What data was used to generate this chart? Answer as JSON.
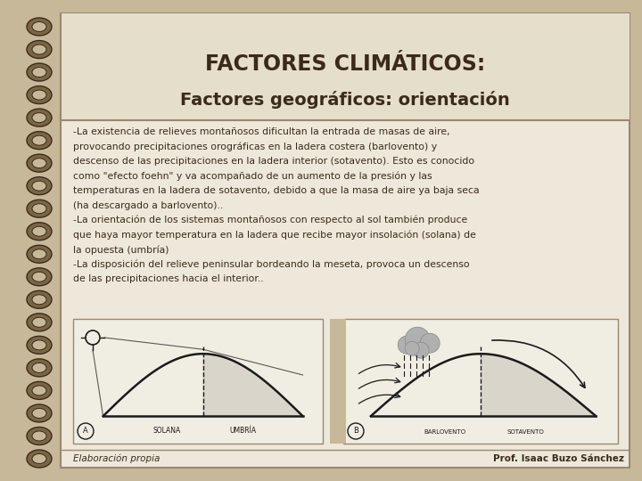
{
  "bg_color": "#c8b89a",
  "notebook_bg": "#ede8da",
  "title1": "FACTORES CLIMÁTICOS:",
  "title2": "Factores geográficos: orientación",
  "title1_fontsize": 17,
  "title2_fontsize": 14,
  "title_color": "#3b2a1a",
  "body_lines": [
    "-La existencia de relieves montañosos dificultan la entrada de masas de aire,",
    "provocando precipitaciones orográficas en la ladera costera (barlovento) y",
    "descenso de las precipitaciones en la ladera interior (sotavento). Esto es conocido",
    "como \"efecto foehn\" y va acompañado de un aumento de la presión y las",
    "temperaturas en la ladera de sotavento, debido a que la masa de aire ya baja seca",
    "(ha descargado a barlovento)..",
    "-La orientación de los sistemas montañosos con respecto al sol también produce",
    "que haya mayor temperatura en la ladera que recibe mayor insolación (solana) de",
    "la opuesta (umbría)",
    "-La disposición del relieve peninsular bordeando la meseta, provoca un descenso",
    "de las precipitaciones hacia el interior.."
  ],
  "body_fontsize": 7.8,
  "body_color": "#3b2a1a",
  "footer_left": "Elaboración propia",
  "footer_right": "Prof. Isaac Buzo Sánchez",
  "footer_fontsize": 7.5,
  "solana_label": "SOLANA",
  "umbria_label": "UMBRÍA",
  "barlovento_label": "BARLOVENTO",
  "sotavento_label": "SOTAVENTO",
  "diagram_line_color": "#1a1a1a",
  "ring_color": "#8b7355"
}
